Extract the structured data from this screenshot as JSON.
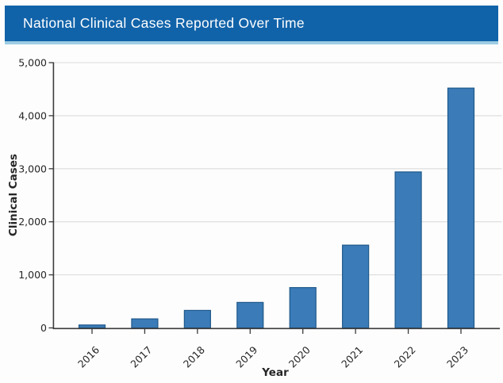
{
  "header": {
    "title": "National Clinical Cases Reported Over Time",
    "background_color": "#1163a9",
    "underline_color": "#9ecde3",
    "text_color": "#ffffff"
  },
  "chart_data": {
    "type": "bar",
    "title": "National Clinical Cases Reported Over Time",
    "categories": [
      "2016",
      "2017",
      "2018",
      "2019",
      "2020",
      "2021",
      "2022",
      "2023"
    ],
    "values": [
      55,
      170,
      330,
      480,
      760,
      1560,
      2940,
      4520
    ],
    "xlabel": "Year",
    "ylabel": "Clinical Cases",
    "ylim": [
      0,
      5000
    ],
    "ytick_step": 1000,
    "ytick_labels": [
      "0",
      "1,000",
      "2,000",
      "3,000",
      "4,000",
      "5,000"
    ],
    "grid": "horizontal gridlines at each 1,000",
    "legend_position": "none",
    "bar_color": "#3a7bb8",
    "bar_edge_color": "#20598a",
    "gridline_color": "#dcdcdc",
    "axis_color": "#3b3b3b",
    "plot_background": "#ffffff"
  }
}
